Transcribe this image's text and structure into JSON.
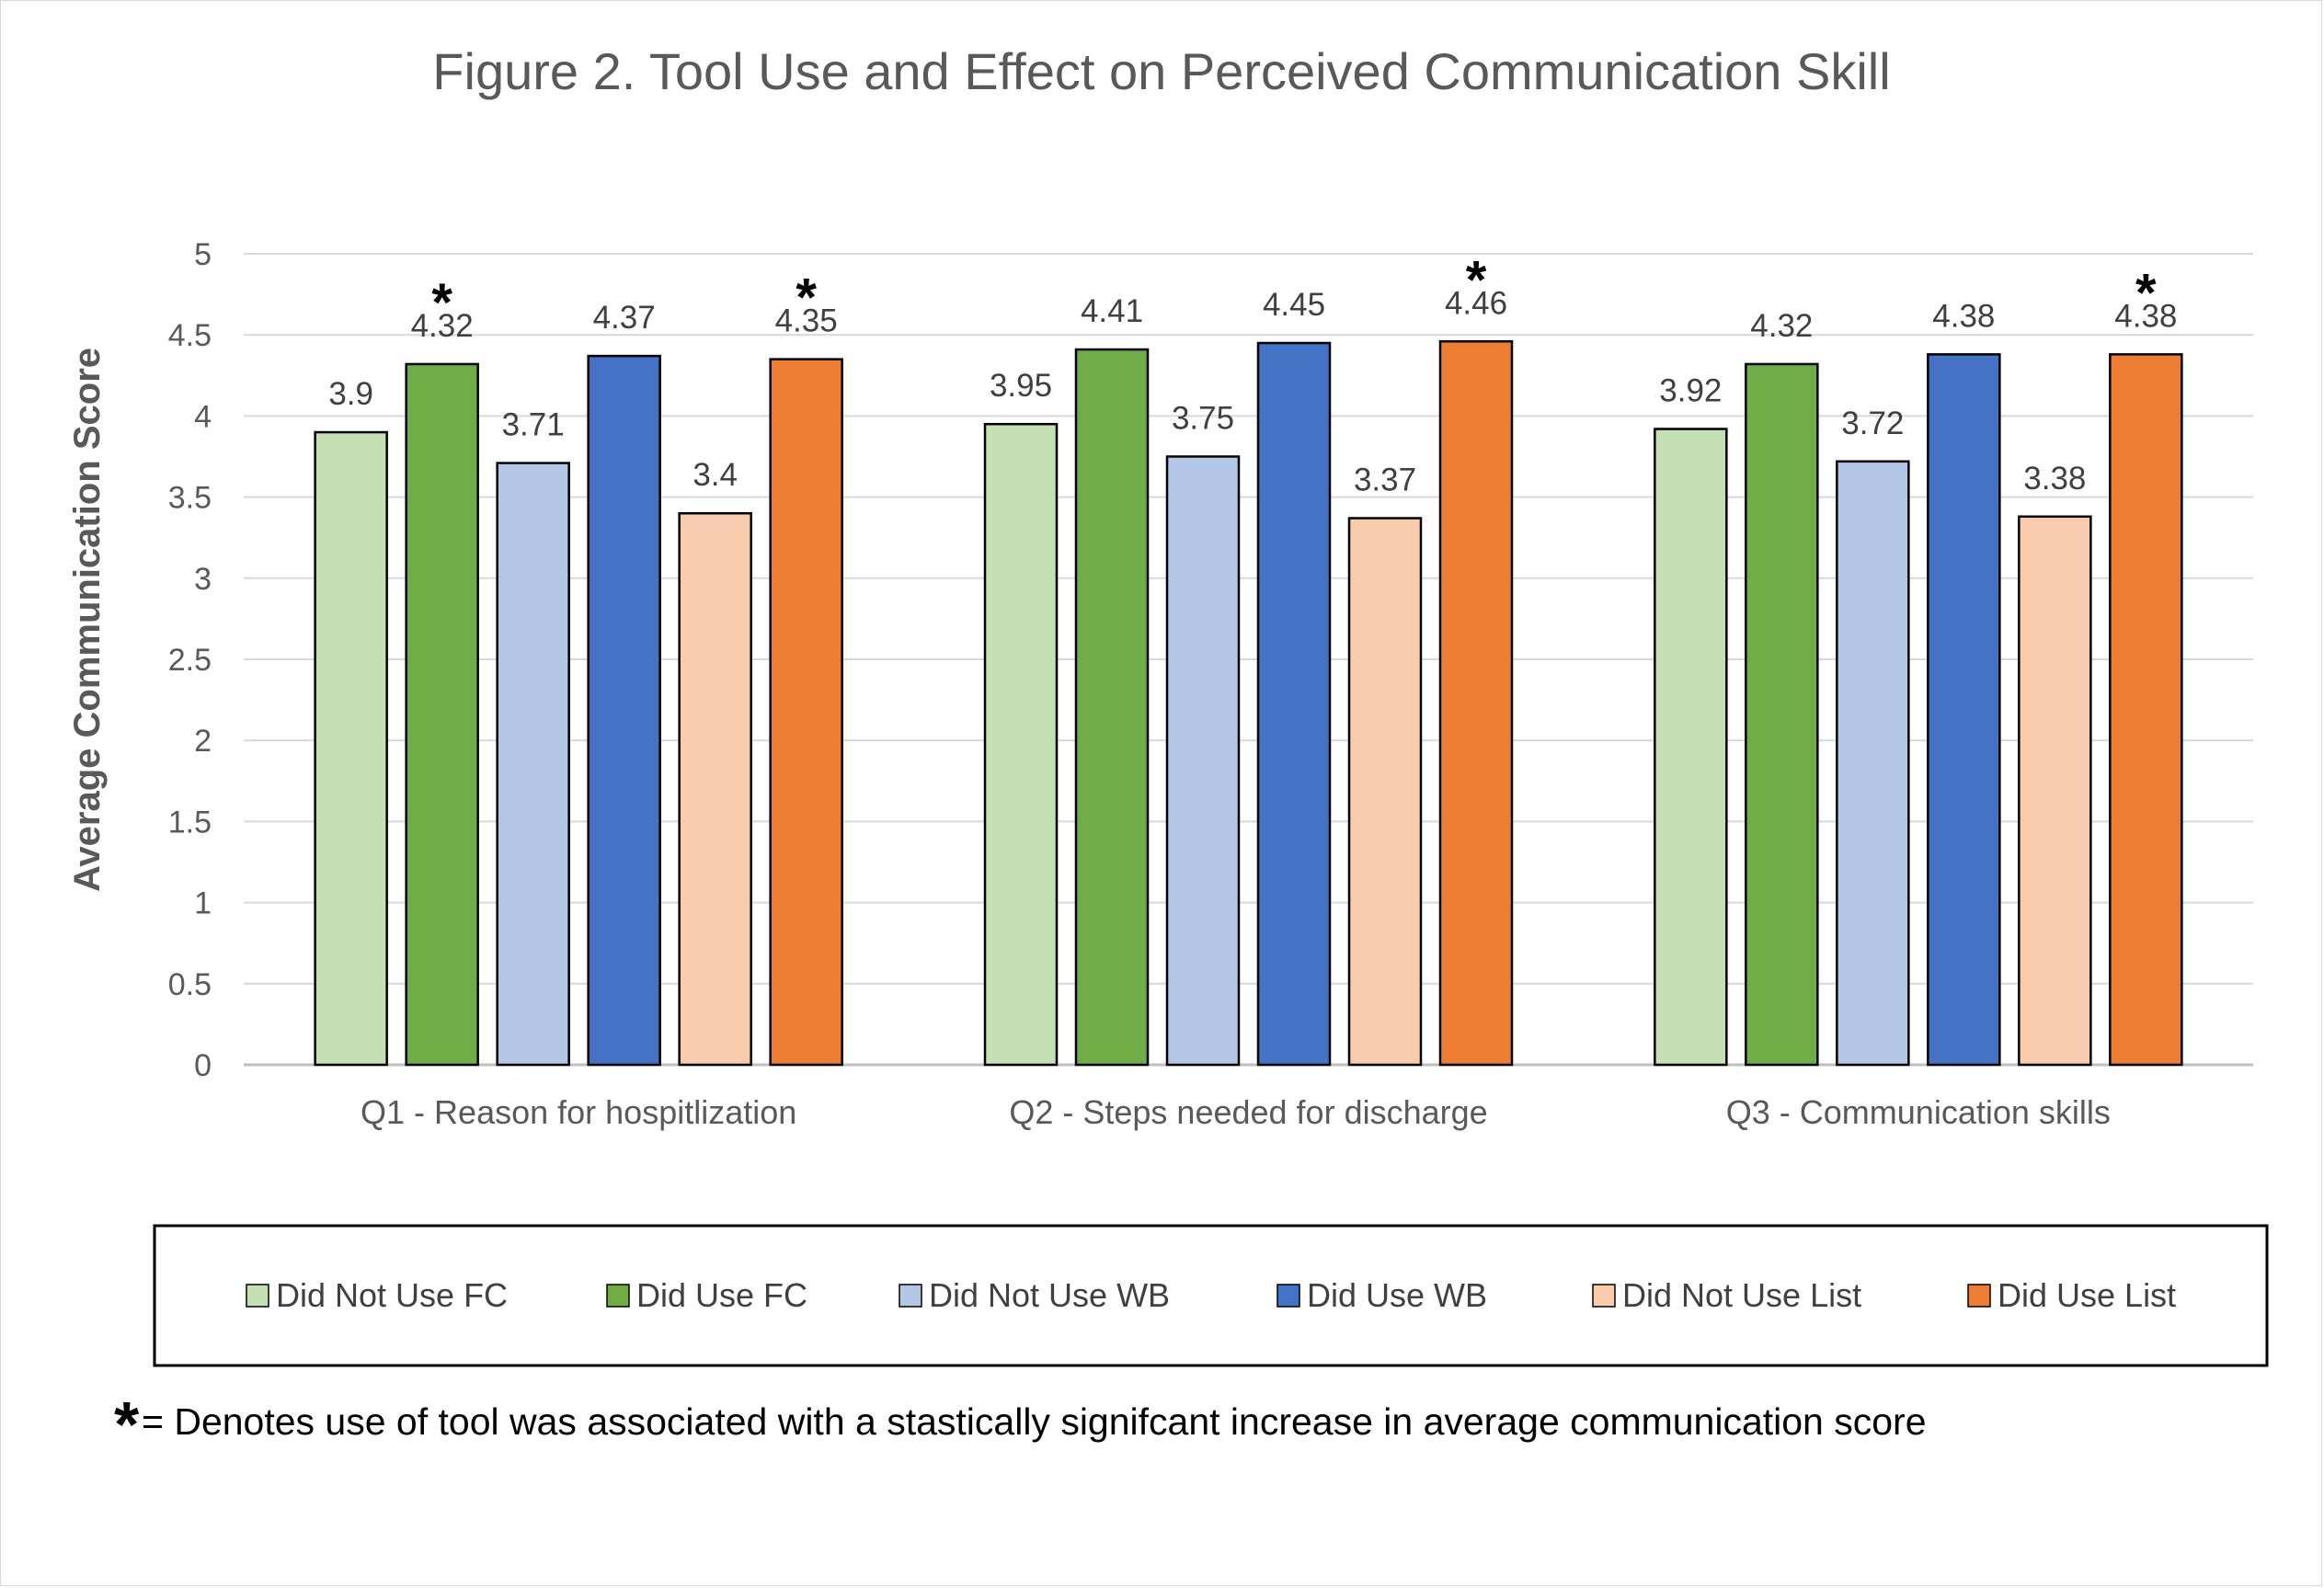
{
  "chart_data": {
    "type": "bar",
    "title": "Figure 2. Tool Use and Effect on Perceived Communication Skill",
    "xlabel": "",
    "ylabel": "Average Communication Score",
    "ylim": [
      0,
      5
    ],
    "yticks": [
      "0",
      "0.5",
      "1",
      "1.5",
      "2",
      "2.5",
      "3",
      "3.5",
      "4",
      "4.5",
      "5"
    ],
    "grid": true,
    "legend_position": "bottom",
    "categories": [
      "Q1 - Reason for hospitlization",
      "Q2 - Steps needed for discharge",
      "Q3 - Communication skills"
    ],
    "series": [
      {
        "name": "Did Not Use FC",
        "color": "#c5e0b4",
        "values": [
          3.9,
          3.95,
          3.92
        ],
        "labels": [
          "3.9",
          "3.95",
          "3.92"
        ]
      },
      {
        "name": "Did Use FC",
        "color": "#70ad47",
        "values": [
          4.32,
          4.41,
          4.32
        ],
        "labels": [
          "4.32",
          "4.41",
          "4.32"
        ]
      },
      {
        "name": "Did Not Use WB",
        "color": "#b4c7e7",
        "values": [
          3.71,
          3.75,
          3.72
        ],
        "labels": [
          "3.71",
          "3.75",
          "3.72"
        ]
      },
      {
        "name": "Did Use WB",
        "color": "#4472c4",
        "values": [
          4.37,
          4.45,
          4.38
        ],
        "labels": [
          "4.37",
          "4.45",
          "4.38"
        ]
      },
      {
        "name": "Did Not Use List",
        "color": "#f8cbad",
        "values": [
          3.4,
          3.37,
          3.38
        ],
        "labels": [
          "3.4",
          "3.37",
          "3.38"
        ]
      },
      {
        "name": "Did Use List",
        "color": "#ed7d31",
        "values": [
          4.35,
          4.46,
          4.38
        ],
        "labels": [
          "4.35",
          "4.46",
          "4.38"
        ]
      }
    ],
    "significance_marker": "*",
    "significant": [
      {
        "category": 0,
        "series": 1
      },
      {
        "category": 0,
        "series": 5
      },
      {
        "category": 1,
        "series": 5
      },
      {
        "category": 2,
        "series": 5
      }
    ],
    "footnote": {
      "marker": "*",
      "text": "= Denotes use of tool was associated with a stastically signifcant increase in average communication score"
    }
  }
}
